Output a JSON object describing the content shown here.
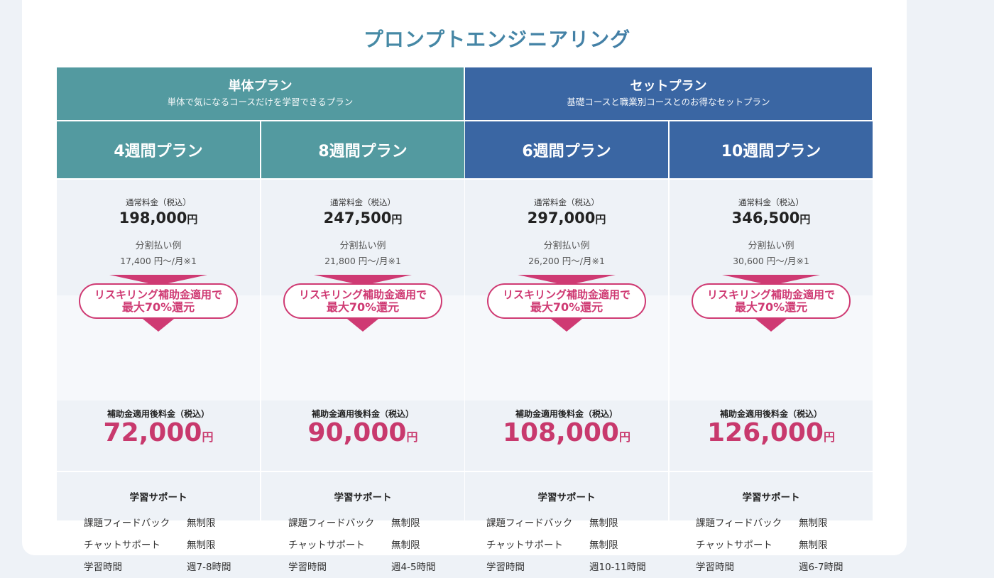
{
  "title": "プロンプトエンジニアリング",
  "groups": [
    {
      "name": "単体プラン",
      "desc": "単体で気になるコースだけを学習できるプラン"
    },
    {
      "name": "セットプラン",
      "desc": "基礎コースと職業別コースとのお得なセットプラン"
    }
  ],
  "labels": {
    "regular": "通常料金（税込）",
    "split": "分割払い例",
    "subsidy_line1": "リスキリング補助金適用で",
    "subsidy_line2": "最大70%還元",
    "after": "補助金適用後料金（税込）",
    "yen": "円",
    "support_title": "学習サポート",
    "feedback": "課題フィードバック",
    "chat": "チャットサポート",
    "hours": "学習時間"
  },
  "plans": [
    {
      "name": "4週間プラン",
      "price": "198,000",
      "split": "17,400 円〜/月※1",
      "after": "72,000",
      "feedback": "無制限",
      "chat": "無制限",
      "hours": "週7-8時間"
    },
    {
      "name": "8週間プラン",
      "price": "247,500",
      "split": "21,800 円〜/月※1",
      "after": "90,000",
      "feedback": "無制限",
      "chat": "無制限",
      "hours": "週4-5時間"
    },
    {
      "name": "6週間プラン",
      "price": "297,000",
      "split": "26,200 円〜/月※1",
      "after": "108,000",
      "feedback": "無制限",
      "chat": "無制限",
      "hours": "週10-11時間"
    },
    {
      "name": "10週間プラン",
      "price": "346,500",
      "split": "30,600 円〜/月※1",
      "after": "126,000",
      "feedback": "無制限",
      "chat": "無制限",
      "hours": "週6-7時間"
    }
  ],
  "colors": {
    "teal": "#539aa0",
    "blue": "#3a66a3",
    "accent": "#cf3a73"
  }
}
